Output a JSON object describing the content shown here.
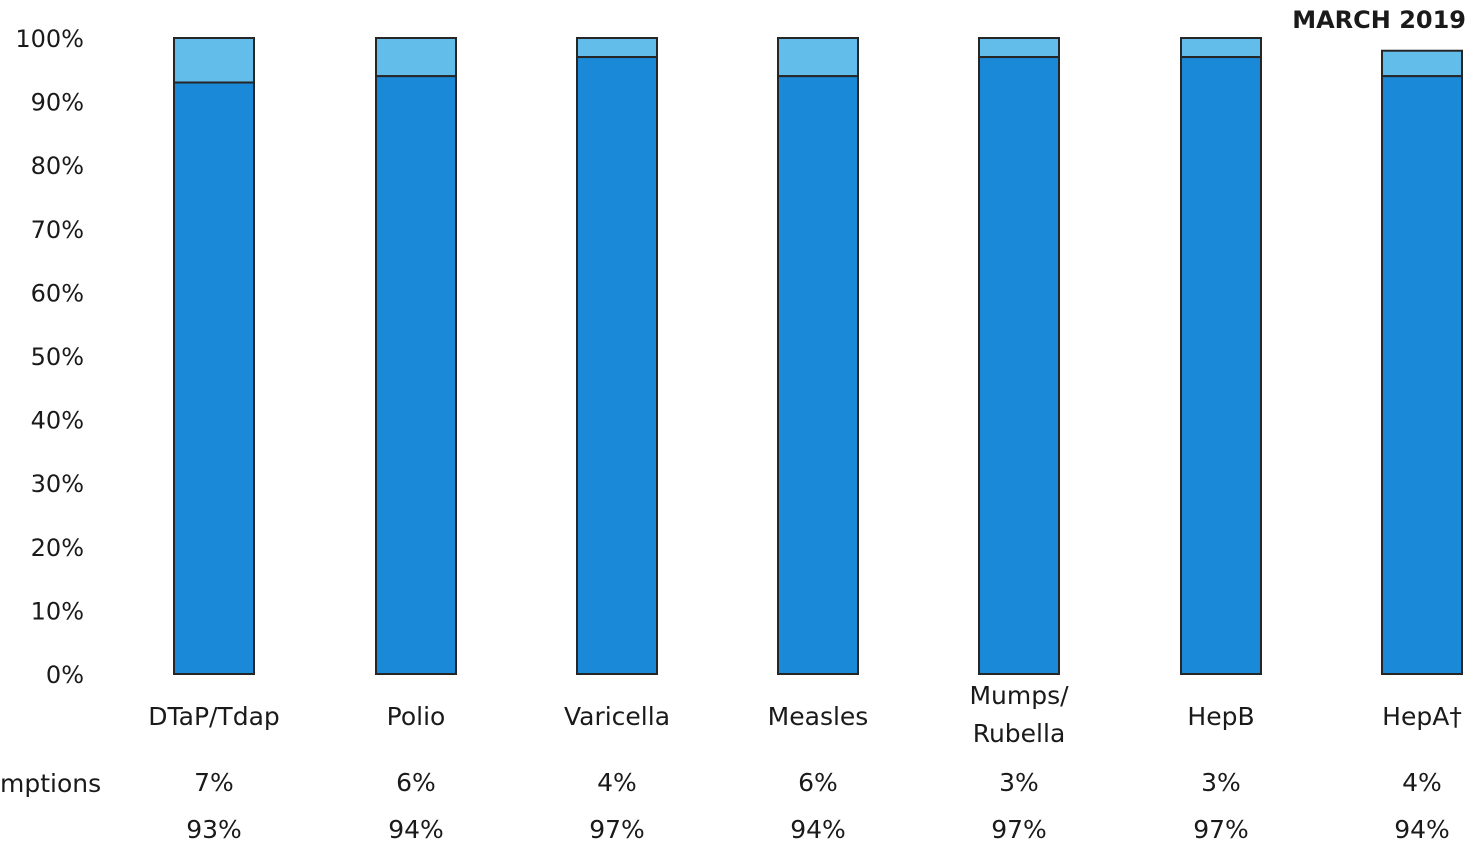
{
  "date_label": "MARCH 2019",
  "row_labels": [
    "mptions"
  ],
  "colors": {
    "vaccinated": "#1a8ad8",
    "exemptions": "#62bdeb",
    "outline": "#262626"
  },
  "chart_data": {
    "type": "bar",
    "stacked": true,
    "categories": [
      "DTaP/Tdap",
      "Polio",
      "Varicella",
      "Measles",
      "Mumps/\nRubella",
      "HepB",
      "HepA†"
    ],
    "ylim": [
      0,
      100
    ],
    "yticks": [
      "0%",
      "10%",
      "20%",
      "30%",
      "40%",
      "50%",
      "60%",
      "70%",
      "80%",
      "90%",
      "100%"
    ],
    "grid": false,
    "series": [
      {
        "values": [
          93,
          94,
          97,
          94,
          97,
          97,
          94
        ],
        "labels": [
          "93%",
          "94%",
          "97%",
          "94%",
          "97%",
          "97%",
          "94%"
        ]
      },
      {
        "values": [
          7,
          6,
          4,
          6,
          3,
          3,
          4
        ],
        "labels": [
          "7%",
          "6%",
          "4%",
          "6%",
          "3%",
          "3%",
          "4%"
        ]
      }
    ]
  }
}
